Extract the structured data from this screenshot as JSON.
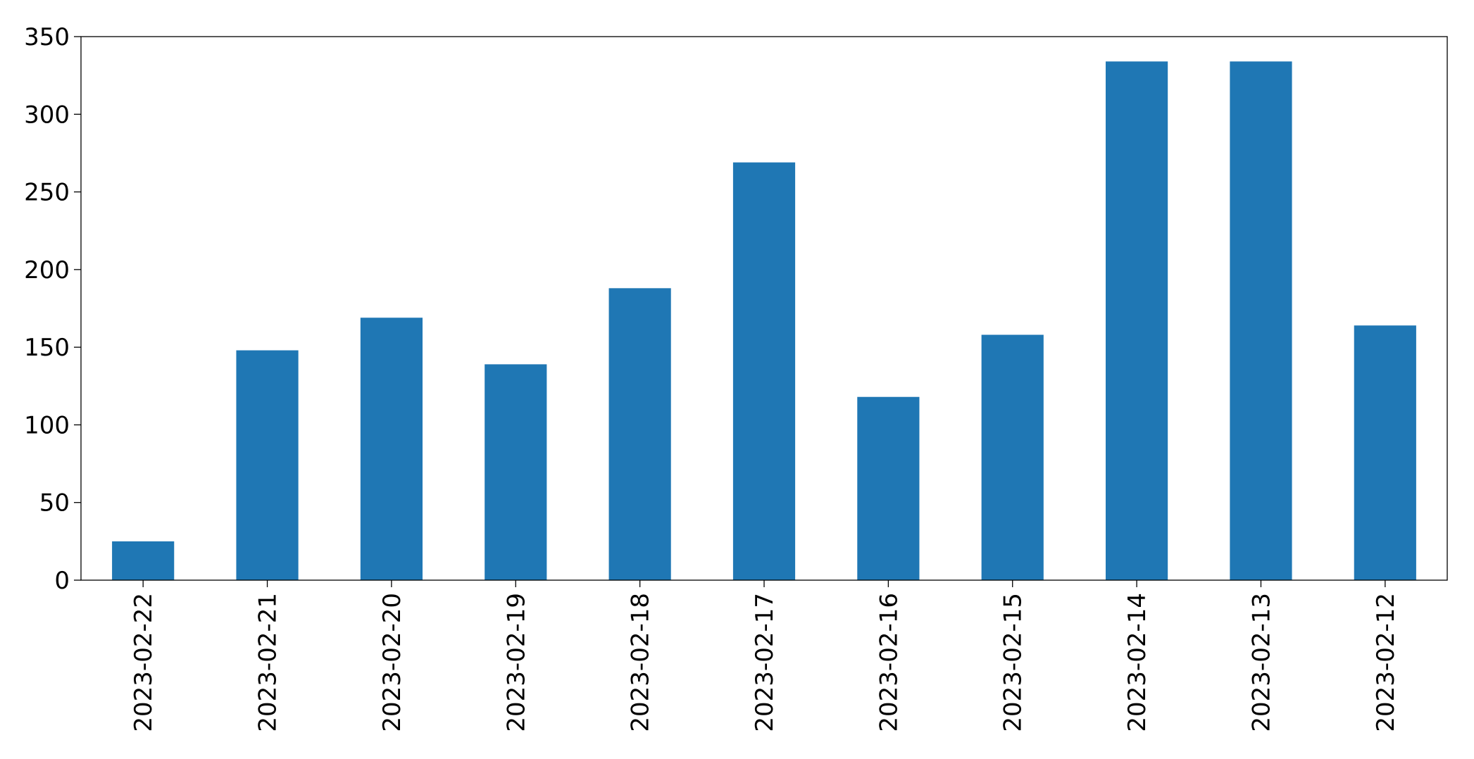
{
  "chart_data": {
    "type": "bar",
    "title": "",
    "xlabel": "",
    "ylabel": "",
    "categories": [
      "2023-02-22",
      "2023-02-21",
      "2023-02-20",
      "2023-02-19",
      "2023-02-18",
      "2023-02-17",
      "2023-02-16",
      "2023-02-15",
      "2023-02-14",
      "2023-02-13",
      "2023-02-12"
    ],
    "values": [
      25,
      148,
      169,
      139,
      188,
      269,
      118,
      158,
      334,
      334,
      164
    ],
    "ylim": [
      0,
      350
    ],
    "yticks": [
      0,
      50,
      100,
      150,
      200,
      250,
      300,
      350
    ],
    "grid": false,
    "legend": "none",
    "colors": {
      "bar": "#1f77b4",
      "axis": "#000000",
      "background": "#ffffff"
    }
  }
}
